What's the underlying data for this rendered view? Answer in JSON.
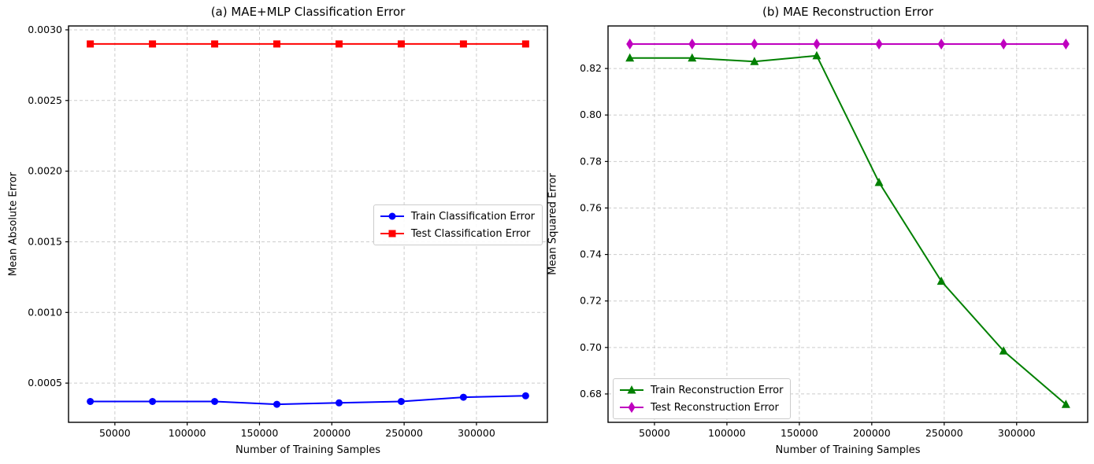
{
  "figure": {
    "charts": [
      {
        "id": "classification-error",
        "chart_data": {
          "type": "line",
          "title": "(a) MAE+MLP Classification Error",
          "xlabel": "Number of Training Samples",
          "ylabel": "Mean Absolute Error",
          "x": [
            33000,
            76000,
            119000,
            162000,
            205000,
            248000,
            291000,
            334000
          ],
          "series": [
            {
              "name": "Train Classification Error",
              "color": "#0000FF",
              "marker": "circle",
              "values": [
                0.00037,
                0.00037,
                0.00037,
                0.00035,
                0.00036,
                0.00037,
                0.0004,
                0.00041
              ]
            },
            {
              "name": "Test Classification Error",
              "color": "#FF0000",
              "marker": "square",
              "values": [
                0.0029,
                0.0029,
                0.0029,
                0.0029,
                0.0029,
                0.0029,
                0.0029,
                0.0029
              ]
            }
          ],
          "xlim": [
            17950,
            349050
          ],
          "ylim": [
            0.0002225,
            0.0030275
          ],
          "xticks": {
            "values": [
              50000,
              100000,
              150000,
              200000,
              250000,
              300000
            ],
            "labels": [
              "50000",
              "100000",
              "150000",
              "200000",
              "250000",
              "300000"
            ]
          },
          "yticks": {
            "values": [
              0.0005,
              0.001,
              0.0015,
              0.002,
              0.0025,
              0.003
            ],
            "labels": [
              "0.0005",
              "0.0010",
              "0.0015",
              "0.0020",
              "0.0025",
              "0.0030"
            ]
          },
          "grid": true,
          "legend_position": "center-right"
        }
      },
      {
        "id": "reconstruction-error",
        "chart_data": {
          "type": "line",
          "title": "(b) MAE Reconstruction Error",
          "xlabel": "Number of Training Samples",
          "ylabel": "Mean Squared Error",
          "x": [
            33000,
            76000,
            119000,
            162000,
            205000,
            248000,
            291000,
            334000
          ],
          "series": [
            {
              "name": "Train Reconstruction Error",
              "color": "#008000",
              "marker": "triangle",
              "values": [
                0.8245,
                0.8245,
                0.823,
                0.8255,
                0.771,
                0.7285,
                0.6985,
                0.6755
              ]
            },
            {
              "name": "Test Reconstruction Error",
              "color": "#BF00BF",
              "marker": "diamond",
              "values": [
                0.8305,
                0.8305,
                0.8305,
                0.8305,
                0.8305,
                0.8305,
                0.8305,
                0.8305
              ]
            }
          ],
          "xlim": [
            17950,
            349050
          ],
          "ylim": [
            0.6678,
            0.8383
          ],
          "xticks": {
            "values": [
              50000,
              100000,
              150000,
              200000,
              250000,
              300000
            ],
            "labels": [
              "50000",
              "100000",
              "150000",
              "200000",
              "250000",
              "300000"
            ]
          },
          "yticks": {
            "values": [
              0.68,
              0.7,
              0.72,
              0.74,
              0.76,
              0.78,
              0.8,
              0.82
            ],
            "labels": [
              "0.68",
              "0.70",
              "0.72",
              "0.74",
              "0.76",
              "0.78",
              "0.80",
              "0.82"
            ]
          },
          "grid": true,
          "legend_position": "lower-left"
        }
      }
    ],
    "style": {
      "grid_color": "#cccccc",
      "frame_color": "#000000",
      "background_color": "#ffffff"
    }
  }
}
